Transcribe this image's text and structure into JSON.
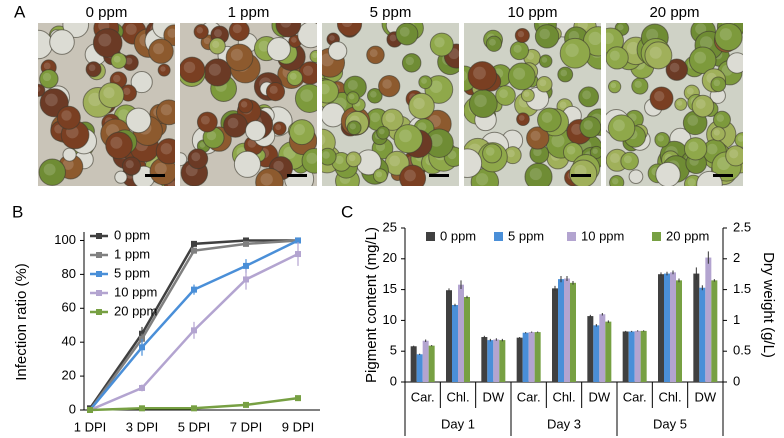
{
  "figure_a": {
    "panel": "A",
    "images": [
      "0 ppm",
      "1 ppm",
      "5 ppm",
      "10 ppm",
      "20 ppm"
    ]
  },
  "chart_data": [
    {
      "type": "line",
      "panel": "B",
      "y_label": "Infection ratio (%)",
      "categories": [
        "1 DPI",
        "3 DPI",
        "5 DPI",
        "7 DPI",
        "9 DPI"
      ],
      "ylim": [
        0,
        105
      ],
      "yticks": [
        0,
        20,
        40,
        60,
        80,
        100
      ],
      "legend": "upper-left",
      "series": [
        {
          "name": "0 ppm",
          "color": "#404040",
          "values": [
            1,
            45,
            98,
            100,
            100
          ],
          "errors": [
            0.5,
            4,
            1,
            1,
            0
          ]
        },
        {
          "name": "1 ppm",
          "color": "#808080",
          "values": [
            0,
            42,
            94,
            98,
            100
          ],
          "errors": [
            0,
            3,
            1,
            1,
            0
          ]
        },
        {
          "name": "5 ppm",
          "color": "#4a8fd8",
          "values": [
            0,
            37,
            71,
            85,
            100
          ],
          "errors": [
            0,
            5,
            3,
            4,
            0
          ]
        },
        {
          "name": "10 ppm",
          "color": "#b3a4d0",
          "values": [
            0,
            13,
            47,
            77,
            92
          ],
          "errors": [
            0,
            2,
            5,
            6,
            7
          ]
        },
        {
          "name": "20 ppm",
          "color": "#77a043",
          "values": [
            0,
            1,
            1,
            3,
            7
          ],
          "errors": [
            0,
            0.5,
            0.5,
            1,
            1
          ]
        }
      ]
    },
    {
      "type": "bar",
      "panel": "C",
      "y_label": "Pigment content (mg/L)",
      "y2_label": "Dry weight (g/L)",
      "categories": [
        "Car.",
        "Chl.",
        "DW",
        "Car.",
        "Chl.",
        "DW",
        "Car.",
        "Chl.",
        "DW"
      ],
      "category_axis": [
        "y",
        "y",
        "y2",
        "y",
        "y",
        "y2",
        "y",
        "y",
        "y2"
      ],
      "groups": [
        "Day 1",
        "Day 3",
        "Day 5"
      ],
      "ylim": [
        0,
        25
      ],
      "yticks": [
        0,
        5,
        10,
        15,
        20,
        25
      ],
      "y2lim": [
        0,
        2.5
      ],
      "y2ticks": [
        0,
        0.5,
        1,
        1.5,
        2,
        2.5
      ],
      "legend": "top",
      "series": [
        {
          "name": "0 ppm",
          "color": "#404040",
          "values": [
            5.8,
            14.9,
            0.73,
            7.2,
            15.2,
            1.07,
            8.2,
            17.5,
            1.76
          ],
          "errors": [
            0.1,
            0.3,
            0.02,
            0.1,
            0.4,
            0.02,
            0.1,
            0.3,
            0.1
          ]
        },
        {
          "name": "5 ppm",
          "color": "#4a8fd8",
          "values": [
            4.5,
            12.5,
            0.68,
            8.0,
            16.7,
            0.92,
            8.2,
            17.6,
            1.53
          ],
          "errors": [
            0.1,
            0.2,
            0.02,
            0.1,
            0.5,
            0.02,
            0.1,
            0.3,
            0.04
          ]
        },
        {
          "name": "10 ppm",
          "color": "#b3a4d0",
          "values": [
            6.7,
            15.8,
            0.69,
            8.1,
            16.8,
            1.1,
            8.3,
            17.8,
            2.02
          ],
          "errors": [
            0.2,
            0.7,
            0.02,
            0.1,
            0.4,
            0.02,
            0.1,
            0.3,
            0.1
          ]
        },
        {
          "name": "20 ppm",
          "color": "#77a043",
          "values": [
            5.9,
            13.8,
            0.68,
            8.1,
            16.1,
            0.98,
            8.3,
            16.5,
            1.65
          ],
          "errors": [
            0.1,
            0.2,
            0.02,
            0.1,
            0.3,
            0.02,
            0.1,
            0.3,
            0.02
          ]
        }
      ]
    }
  ]
}
